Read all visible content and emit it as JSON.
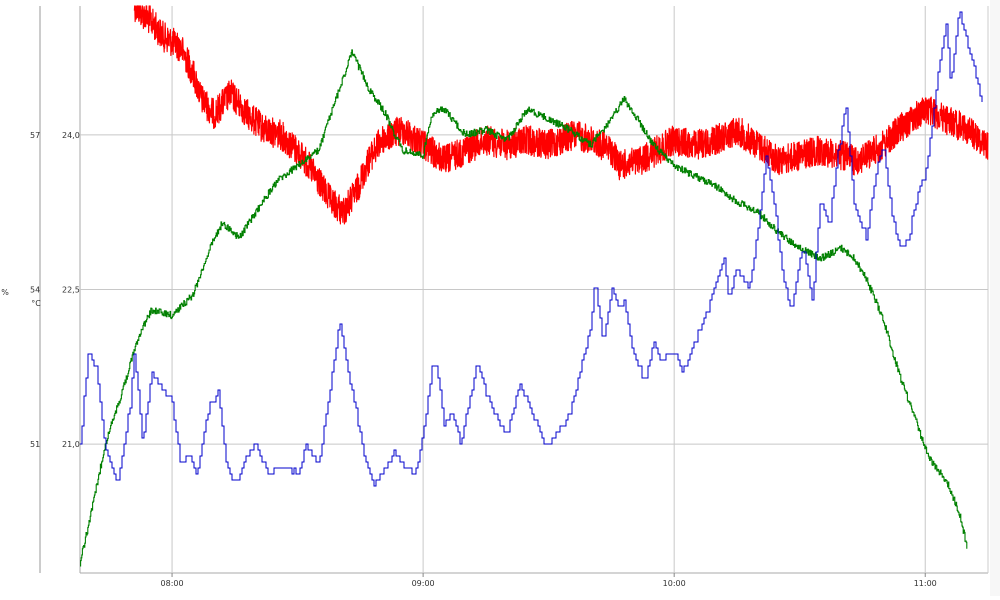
{
  "chart_data": {
    "type": "line",
    "title": "",
    "grid": true,
    "legend": "none",
    "x_axis": {
      "domain": [
        "07:38",
        "11:15"
      ],
      "ticks": [
        "08:00",
        "09:00",
        "10:00",
        "11:00"
      ]
    },
    "left_axis": {
      "unit": "%",
      "domain": [
        48.5,
        59.5
      ],
      "ticks": [
        {
          "value": 51,
          "label": "51"
        },
        {
          "value": 54,
          "label": "54"
        },
        {
          "value": 57,
          "label": "57"
        }
      ]
    },
    "right_axis": {
      "unit": "°C",
      "domain": [
        19.75,
        25.25
      ],
      "ticks": [
        {
          "value": 21.0,
          "label": "21,0"
        },
        {
          "value": 22.5,
          "label": "22,5"
        },
        {
          "value": 24.0,
          "label": "24,0"
        }
      ]
    },
    "series": [
      {
        "color": "#ff0000",
        "axis": "right",
        "style": "noisy-band",
        "points": [
          [
            "07:51",
            25.25
          ],
          [
            "07:55",
            25.1
          ],
          [
            "07:58",
            24.95
          ],
          [
            "08:02",
            24.85
          ],
          [
            "08:05",
            24.6
          ],
          [
            "08:07",
            24.35
          ],
          [
            "08:10",
            24.2
          ],
          [
            "08:14",
            24.4
          ],
          [
            "08:18",
            24.2
          ],
          [
            "08:22",
            24.05
          ],
          [
            "08:26",
            24.0
          ],
          [
            "08:31",
            23.8
          ],
          [
            "08:35",
            23.55
          ],
          [
            "08:38",
            23.35
          ],
          [
            "08:41",
            23.25
          ],
          [
            "08:44",
            23.45
          ],
          [
            "08:47",
            23.75
          ],
          [
            "08:50",
            23.95
          ],
          [
            "08:55",
            24.05
          ],
          [
            "09:00",
            23.9
          ],
          [
            "09:05",
            23.75
          ],
          [
            "09:10",
            23.85
          ],
          [
            "09:15",
            23.95
          ],
          [
            "09:20",
            23.9
          ],
          [
            "09:25",
            23.95
          ],
          [
            "09:30",
            23.9
          ],
          [
            "09:36",
            24.0
          ],
          [
            "09:40",
            23.95
          ],
          [
            "09:45",
            23.85
          ],
          [
            "09:47",
            23.7
          ],
          [
            "09:52",
            23.75
          ],
          [
            "09:56",
            23.85
          ],
          [
            "10:00",
            23.95
          ],
          [
            "10:05",
            23.9
          ],
          [
            "10:10",
            23.95
          ],
          [
            "10:15",
            24.05
          ],
          [
            "10:20",
            23.9
          ],
          [
            "10:25",
            23.75
          ],
          [
            "10:30",
            23.8
          ],
          [
            "10:35",
            23.85
          ],
          [
            "10:40",
            23.8
          ],
          [
            "10:43",
            23.75
          ],
          [
            "10:46",
            23.8
          ],
          [
            "10:50",
            23.9
          ],
          [
            "10:55",
            24.1
          ],
          [
            "11:00",
            24.25
          ],
          [
            "11:05",
            24.15
          ],
          [
            "11:10",
            24.05
          ],
          [
            "11:15",
            23.9
          ]
        ]
      },
      {
        "color": "#008000",
        "axis": "left",
        "style": "stepped-noisy",
        "points": [
          [
            "07:38",
            48.7
          ],
          [
            "07:41",
            49.8
          ],
          [
            "07:44",
            51.0
          ],
          [
            "07:48",
            52.0
          ],
          [
            "07:52",
            53.1
          ],
          [
            "07:55",
            53.6
          ],
          [
            "08:00",
            53.5
          ],
          [
            "08:05",
            53.9
          ],
          [
            "08:09",
            54.8
          ],
          [
            "08:12",
            55.3
          ],
          [
            "08:16",
            55.0
          ],
          [
            "08:20",
            55.5
          ],
          [
            "08:25",
            56.1
          ],
          [
            "08:30",
            56.4
          ],
          [
            "08:35",
            56.7
          ],
          [
            "08:40",
            57.9
          ],
          [
            "08:43",
            58.6
          ],
          [
            "08:47",
            57.9
          ],
          [
            "08:51",
            57.4
          ],
          [
            "08:55",
            56.7
          ],
          [
            "09:00",
            56.6
          ],
          [
            "09:02",
            57.4
          ],
          [
            "09:05",
            57.5
          ],
          [
            "09:10",
            57.0
          ],
          [
            "09:15",
            57.1
          ],
          [
            "09:20",
            56.9
          ],
          [
            "09:25",
            57.5
          ],
          [
            "09:30",
            57.3
          ],
          [
            "09:35",
            57.1
          ],
          [
            "09:40",
            56.8
          ],
          [
            "09:45",
            57.3
          ],
          [
            "09:48",
            57.7
          ],
          [
            "09:52",
            57.2
          ],
          [
            "09:55",
            56.8
          ],
          [
            "10:00",
            56.4
          ],
          [
            "10:05",
            56.2
          ],
          [
            "10:10",
            56.0
          ],
          [
            "10:15",
            55.7
          ],
          [
            "10:20",
            55.5
          ],
          [
            "10:25",
            55.1
          ],
          [
            "10:30",
            54.8
          ],
          [
            "10:35",
            54.6
          ],
          [
            "10:40",
            54.8
          ],
          [
            "10:43",
            54.6
          ],
          [
            "10:46",
            54.2
          ],
          [
            "10:50",
            53.4
          ],
          [
            "10:54",
            52.3
          ],
          [
            "10:58",
            51.4
          ],
          [
            "11:00",
            50.9
          ],
          [
            "11:02",
            50.6
          ],
          [
            "11:05",
            50.3
          ],
          [
            "11:08",
            49.7
          ],
          [
            "11:10",
            49.0
          ]
        ]
      },
      {
        "color": "#0000cc",
        "axis": "right",
        "style": "stepped",
        "points": [
          [
            "07:38",
            21.0
          ],
          [
            "07:40",
            21.9
          ],
          [
            "07:42",
            21.7
          ],
          [
            "07:44",
            21.0
          ],
          [
            "07:47",
            20.6
          ],
          [
            "07:50",
            21.4
          ],
          [
            "07:51",
            21.9
          ],
          [
            "07:53",
            21.0
          ],
          [
            "07:55",
            21.7
          ],
          [
            "07:58",
            21.5
          ],
          [
            "08:00",
            21.4
          ],
          [
            "08:02",
            20.8
          ],
          [
            "08:04",
            20.9
          ],
          [
            "08:06",
            20.7
          ],
          [
            "08:09",
            21.4
          ],
          [
            "08:11",
            21.5
          ],
          [
            "08:13",
            20.8
          ],
          [
            "08:15",
            20.6
          ],
          [
            "08:18",
            20.9
          ],
          [
            "08:20",
            21.0
          ],
          [
            "08:23",
            20.7
          ],
          [
            "08:27",
            20.8
          ],
          [
            "08:30",
            20.7
          ],
          [
            "08:32",
            21.0
          ],
          [
            "08:35",
            20.8
          ],
          [
            "08:38",
            21.6
          ],
          [
            "08:40",
            22.2
          ],
          [
            "08:42",
            21.7
          ],
          [
            "08:44",
            21.3
          ],
          [
            "08:46",
            20.9
          ],
          [
            "08:48",
            20.6
          ],
          [
            "08:51",
            20.8
          ],
          [
            "08:53",
            20.9
          ],
          [
            "08:55",
            20.8
          ],
          [
            "08:58",
            20.7
          ],
          [
            "09:00",
            21.1
          ],
          [
            "09:02",
            21.7
          ],
          [
            "09:03",
            21.8
          ],
          [
            "09:05",
            21.2
          ],
          [
            "09:07",
            21.3
          ],
          [
            "09:09",
            21.0
          ],
          [
            "09:11",
            21.4
          ],
          [
            "09:13",
            21.8
          ],
          [
            "09:15",
            21.5
          ],
          [
            "09:18",
            21.2
          ],
          [
            "09:20",
            21.1
          ],
          [
            "09:23",
            21.6
          ],
          [
            "09:26",
            21.3
          ],
          [
            "09:29",
            21.0
          ],
          [
            "09:32",
            21.1
          ],
          [
            "09:35",
            21.3
          ],
          [
            "09:38",
            21.8
          ],
          [
            "09:40",
            22.1
          ],
          [
            "09:41",
            22.6
          ],
          [
            "09:43",
            22.0
          ],
          [
            "09:45",
            22.5
          ],
          [
            "09:47",
            22.3
          ],
          [
            "09:48",
            22.4
          ],
          [
            "09:50",
            21.9
          ],
          [
            "09:53",
            21.6
          ],
          [
            "09:55",
            22.0
          ],
          [
            "09:57",
            21.8
          ],
          [
            "10:00",
            21.9
          ],
          [
            "10:02",
            21.7
          ],
          [
            "10:04",
            21.9
          ],
          [
            "10:06",
            22.1
          ],
          [
            "10:08",
            22.3
          ],
          [
            "10:10",
            22.6
          ],
          [
            "10:12",
            22.8
          ],
          [
            "10:13",
            22.4
          ],
          [
            "10:15",
            22.7
          ],
          [
            "10:18",
            22.5
          ],
          [
            "10:20",
            23.1
          ],
          [
            "10:22",
            23.8
          ],
          [
            "10:24",
            23.3
          ],
          [
            "10:26",
            22.6
          ],
          [
            "10:28",
            22.3
          ],
          [
            "10:30",
            22.8
          ],
          [
            "10:31",
            22.9
          ],
          [
            "10:33",
            22.4
          ],
          [
            "10:35",
            23.4
          ],
          [
            "10:37",
            23.1
          ],
          [
            "10:39",
            23.8
          ],
          [
            "10:41",
            24.3
          ],
          [
            "10:43",
            23.3
          ],
          [
            "10:46",
            23.0
          ],
          [
            "10:48",
            23.6
          ],
          [
            "10:50",
            23.9
          ],
          [
            "10:52",
            23.2
          ],
          [
            "10:54",
            22.9
          ],
          [
            "10:56",
            23.0
          ],
          [
            "10:58",
            23.4
          ],
          [
            "11:00",
            23.6
          ],
          [
            "11:01",
            23.9
          ],
          [
            "11:03",
            24.6
          ],
          [
            "11:05",
            25.1
          ],
          [
            "11:06",
            24.5
          ],
          [
            "11:08",
            25.2
          ],
          [
            "11:10",
            24.9
          ],
          [
            "11:12",
            24.6
          ],
          [
            "11:14",
            24.2
          ]
        ]
      }
    ]
  }
}
